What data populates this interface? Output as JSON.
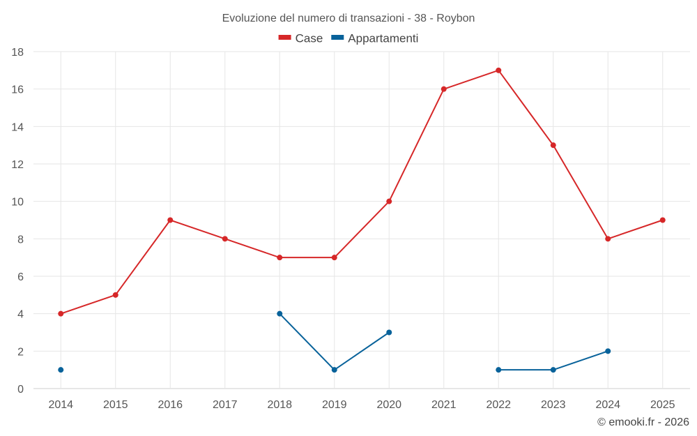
{
  "chart_data": {
    "type": "line",
    "title": "Evoluzione del numero di transazioni - 38 - Roybon",
    "categories": [
      "2014",
      "2015",
      "2016",
      "2017",
      "2018",
      "2019",
      "2020",
      "2021",
      "2022",
      "2023",
      "2024",
      "2025"
    ],
    "ylim": [
      0,
      18
    ],
    "yticks": [
      0,
      2,
      4,
      6,
      8,
      10,
      12,
      14,
      16,
      18
    ],
    "grid": true,
    "legend_position": "top-center",
    "series": [
      {
        "name": "Case",
        "color": "#d62728",
        "values": [
          4,
          5,
          9,
          8,
          7,
          7,
          10,
          16,
          17,
          13,
          8,
          9
        ]
      },
      {
        "name": "Appartamenti",
        "color": "#08629a",
        "values": [
          1,
          null,
          null,
          null,
          4,
          1,
          3,
          null,
          1,
          1,
          2,
          null
        ]
      }
    ]
  },
  "credit": "© emooki.fr - 2026"
}
